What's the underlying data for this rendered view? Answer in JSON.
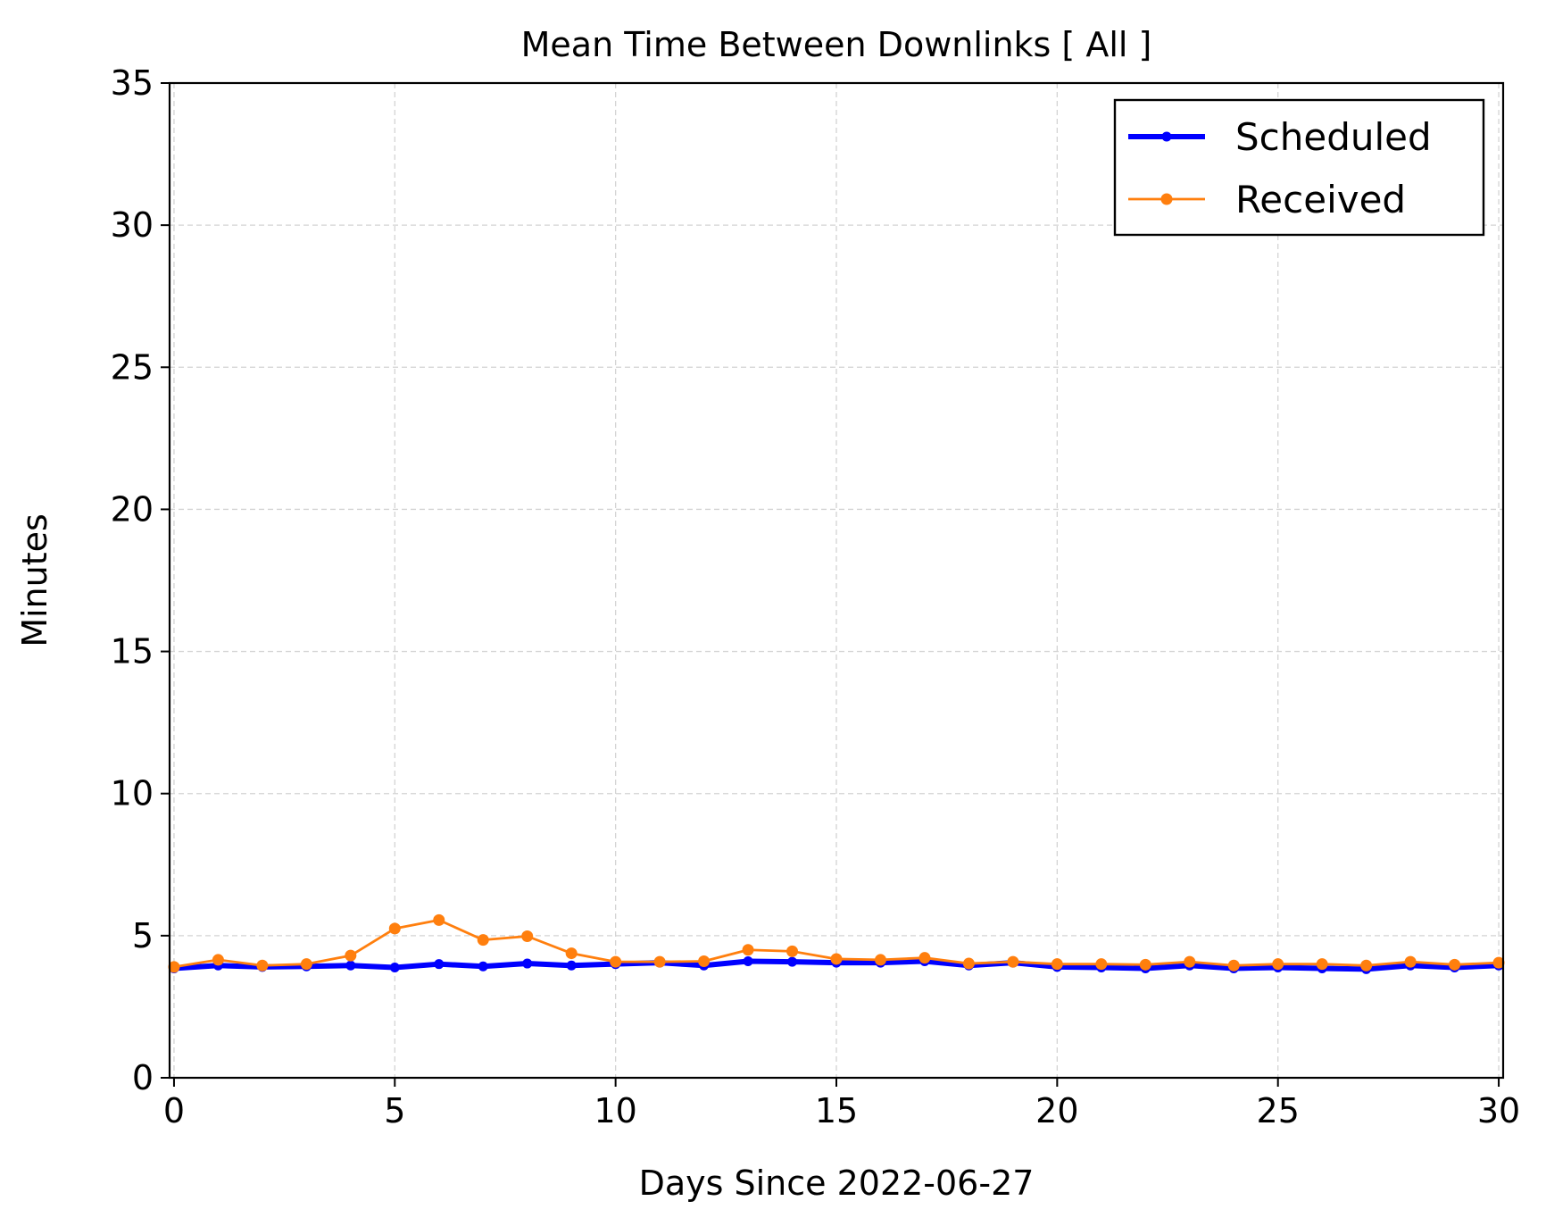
{
  "chart_data": {
    "type": "line",
    "title": "Mean Time Between Downlinks [ All ]",
    "xlabel": "Days Since 2022-06-27",
    "ylabel": "Minutes",
    "xlim": [
      -0.1,
      30.1
    ],
    "ylim": [
      0,
      35
    ],
    "xticks": [
      0,
      5,
      10,
      15,
      20,
      25,
      30
    ],
    "yticks": [
      0,
      5,
      10,
      15,
      20,
      25,
      30,
      35
    ],
    "grid": true,
    "legend_position": "top-right",
    "x": [
      0,
      1,
      2,
      3,
      4,
      5,
      6,
      7,
      8,
      9,
      10,
      11,
      12,
      13,
      14,
      15,
      16,
      17,
      18,
      19,
      20,
      21,
      22,
      23,
      24,
      25,
      26,
      27,
      28,
      29,
      30
    ],
    "series": [
      {
        "name": "Scheduled",
        "color": "#0000ff",
        "values": [
          3.85,
          3.95,
          3.9,
          3.92,
          3.95,
          3.88,
          4.0,
          3.92,
          4.02,
          3.95,
          4.0,
          4.05,
          3.95,
          4.1,
          4.08,
          4.05,
          4.05,
          4.1,
          3.95,
          4.05,
          3.9,
          3.88,
          3.85,
          3.95,
          3.85,
          3.88,
          3.85,
          3.82,
          3.95,
          3.88,
          3.95
        ]
      },
      {
        "name": "Received",
        "color": "#ff7f0e",
        "values": [
          3.9,
          4.15,
          3.95,
          4.0,
          4.3,
          5.25,
          5.55,
          4.85,
          4.98,
          4.38,
          4.08,
          4.08,
          4.1,
          4.5,
          4.45,
          4.18,
          4.15,
          4.22,
          4.02,
          4.08,
          4.0,
          4.0,
          3.98,
          4.08,
          3.95,
          4.0,
          4.0,
          3.95,
          4.08,
          3.98,
          4.05
        ]
      }
    ]
  }
}
